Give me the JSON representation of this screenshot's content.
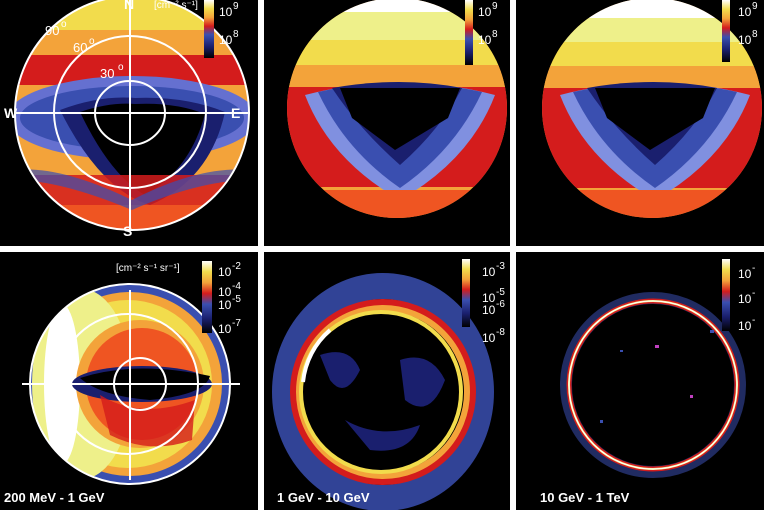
{
  "chart_data": [
    {
      "type": "heatmap",
      "panel": "top-left",
      "projection": "polar-sky",
      "compass": [
        "N",
        "W",
        "E",
        "S"
      ],
      "zenith_rings": [
        "30",
        "60",
        "90"
      ],
      "colorbar": {
        "unit": "[cm⁻² s⁻¹]",
        "ticks": [
          "10",
          "10"
        ],
        "exponents": [
          "9",
          "8"
        ]
      },
      "colormap": [
        "#000000",
        "#1a1f6e",
        "#3a4fb0",
        "#6570d0",
        "#d41c1c",
        "#ef5522",
        "#f3a33a",
        "#f2dc4c",
        "#eef08a",
        "#ffffff"
      ]
    },
    {
      "type": "heatmap",
      "panel": "top-middle",
      "colorbar": {
        "ticks": [
          "10",
          "10"
        ],
        "exponents": [
          "9",
          "8"
        ]
      }
    },
    {
      "type": "heatmap",
      "panel": "top-right",
      "colorbar": {
        "ticks": [
          "10",
          "10"
        ],
        "exponents": [
          "9",
          "8"
        ]
      }
    },
    {
      "type": "heatmap",
      "panel": "bottom-left",
      "label": "200 MeV - 1 GeV",
      "colorbar": {
        "unit": "[cm⁻² s⁻¹ sr⁻¹]",
        "ticks": [
          "10",
          "10",
          "10",
          "10"
        ],
        "exponents": [
          "-2",
          "-4",
          "-5",
          "-7"
        ]
      }
    },
    {
      "type": "heatmap",
      "panel": "bottom-middle",
      "label": "1 GeV - 10 GeV",
      "colorbar": {
        "ticks": [
          "10",
          "10",
          "10",
          "10"
        ],
        "exponents": [
          "-3",
          "-5",
          "-6",
          "-8"
        ]
      }
    },
    {
      "type": "heatmap",
      "panel": "bottom-right",
      "label": "10 GeV - 1 TeV",
      "colorbar": {
        "ticks": [
          "10",
          "10",
          "10"
        ],
        "exponents": [
          "-",
          "-",
          "-"
        ]
      }
    }
  ]
}
